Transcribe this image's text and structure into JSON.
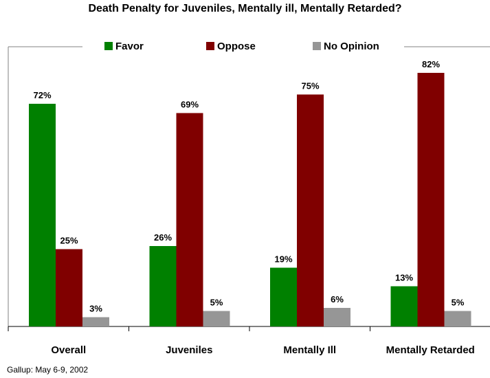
{
  "chart_data": {
    "type": "bar",
    "title": "Death Penalty for Juveniles, Mentally ill, Mentally Retarded?",
    "categories": [
      "Overall",
      "Juveniles",
      "Mentally Ill",
      "Mentally Retarded"
    ],
    "series": [
      {
        "name": "Favor",
        "values": [
          72,
          26,
          19,
          13
        ],
        "color": "#008000"
      },
      {
        "name": "Oppose",
        "values": [
          25,
          69,
          75,
          82
        ],
        "color": "#800000"
      },
      {
        "name": "No Opinion",
        "values": [
          3,
          5,
          6,
          5
        ],
        "color": "#969696"
      }
    ],
    "value_labels": [
      [
        "72%",
        "26%",
        "19%",
        "13%"
      ],
      [
        "25%",
        "69%",
        "75%",
        "82%"
      ],
      [
        "3%",
        "5%",
        "6%",
        "5%"
      ]
    ],
    "ylim": [
      0,
      100
    ],
    "grid": false,
    "legend": "top"
  },
  "source": "Gallup: May 6-9, 2002"
}
